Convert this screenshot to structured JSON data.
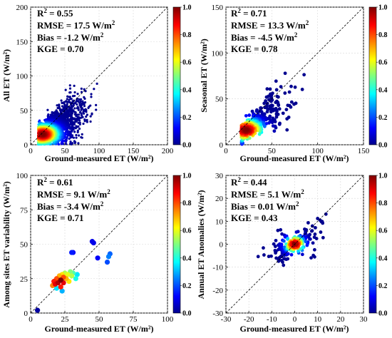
{
  "figure": {
    "colormap": [
      "#00008f",
      "#0000ff",
      "#007fff",
      "#00ffff",
      "#7fff7f",
      "#ffff00",
      "#ff7f00",
      "#ff0000",
      "#7f0000"
    ]
  },
  "chart_data": [
    {
      "type": "scatter",
      "id": "all",
      "xlabel": "Ground-measured ET (W/m²)",
      "ylabel": "All ET (W/m²)",
      "xlim": [
        0,
        200
      ],
      "ylim": [
        0,
        200
      ],
      "xticks": [
        0,
        50,
        100,
        150,
        200
      ],
      "yticks": [
        0,
        50,
        100,
        150,
        200
      ],
      "grid": true,
      "one_to_one_line": true,
      "stats": {
        "r2_label": "R",
        "r2_sup": "2",
        "r2_value": " = 0.55",
        "rmse": "RMSE = 17.5 W/m",
        "rmse_sup": "2",
        "bias": "Bias = -1.2 W/m",
        "bias_sup": "2",
        "kge": "KGE = 0.70"
      },
      "colorbar": {
        "range": [
          0,
          1
        ],
        "ticks": [
          "0.0",
          "0.2",
          "0.4",
          "0.6",
          "0.8",
          "1.0"
        ]
      },
      "density_cloud": {
        "center": [
          18,
          15
        ],
        "spread_x": 28,
        "spread_y": 18,
        "slope": 0.55,
        "x_max": 140,
        "n": 2600
      }
    },
    {
      "type": "scatter",
      "id": "seasonal",
      "xlabel": "Ground-measured ET (W/m²)",
      "ylabel": "Seasonal ET (W/m²)",
      "xlim": [
        0,
        150
      ],
      "ylim": [
        0,
        150
      ],
      "xticks": [
        0,
        50,
        100,
        150
      ],
      "yticks": [
        0,
        50,
        100,
        150
      ],
      "grid": true,
      "one_to_one_line": true,
      "stats": {
        "r2_label": "R",
        "r2_sup": "2",
        "r2_value": " = 0.71",
        "rmse": "RMSE = 13.3 W/m",
        "rmse_sup": "2",
        "bias": "Bias = -4.5 W/m",
        "bias_sup": "2",
        "kge": "KGE = 0.78"
      },
      "colorbar": {
        "range": [
          0,
          1
        ],
        "ticks": [
          "0.0",
          "0.2",
          "0.4",
          "0.6",
          "0.8",
          "1.0"
        ]
      },
      "density_cloud": {
        "center": [
          22,
          16
        ],
        "spread_x": 22,
        "spread_y": 14,
        "slope": 0.75,
        "x_max": 105,
        "n": 380
      }
    },
    {
      "type": "scatter",
      "id": "among_sites",
      "xlabel": "Ground-measured ET (W/m²)",
      "ylabel": "Among sites ET variability (W/m²)",
      "xlim": [
        0,
        100
      ],
      "ylim": [
        0,
        100
      ],
      "xticks": [
        0,
        25,
        50,
        75,
        100
      ],
      "yticks": [
        0,
        25,
        50,
        75,
        100
      ],
      "grid": true,
      "one_to_one_line": true,
      "stats": {
        "r2_label": "R",
        "r2_sup": "2",
        "r2_value": " = 0.61",
        "rmse": "RMSE = 9.1 W/m",
        "rmse_sup": "2",
        "bias": "Bias = -3.4 W/m",
        "bias_sup": "2",
        "kge": "KGE = 0.71"
      },
      "colorbar": {
        "range": [
          0,
          1
        ],
        "ticks": [
          "0.0",
          "0.2",
          "0.4",
          "0.6",
          "0.8",
          "1.0"
        ]
      },
      "points": [
        {
          "x": 5,
          "y": 2,
          "d": 0.02
        },
        {
          "x": 16,
          "y": 20,
          "d": 0.75
        },
        {
          "x": 17,
          "y": 23,
          "d": 0.85
        },
        {
          "x": 18,
          "y": 21,
          "d": 0.9
        },
        {
          "x": 19,
          "y": 25,
          "d": 0.8
        },
        {
          "x": 20,
          "y": 22,
          "d": 0.95
        },
        {
          "x": 21,
          "y": 27,
          "d": 0.7
        },
        {
          "x": 22,
          "y": 24,
          "d": 1.0
        },
        {
          "x": 22,
          "y": 19,
          "d": 0.85
        },
        {
          "x": 23,
          "y": 28,
          "d": 0.65
        },
        {
          "x": 24,
          "y": 26,
          "d": 0.8
        },
        {
          "x": 24,
          "y": 22,
          "d": 0.9
        },
        {
          "x": 25,
          "y": 29,
          "d": 0.55
        },
        {
          "x": 26,
          "y": 25,
          "d": 0.7
        },
        {
          "x": 27,
          "y": 28,
          "d": 0.6
        },
        {
          "x": 28,
          "y": 23,
          "d": 0.65
        },
        {
          "x": 29,
          "y": 30,
          "d": 0.5
        },
        {
          "x": 30,
          "y": 27,
          "d": 0.55
        },
        {
          "x": 31,
          "y": 29,
          "d": 0.45
        },
        {
          "x": 33,
          "y": 25,
          "d": 0.4
        },
        {
          "x": 34,
          "y": 28,
          "d": 0.35
        },
        {
          "x": 23,
          "y": 16,
          "d": 0.3
        },
        {
          "x": 19,
          "y": 18,
          "d": 0.35
        },
        {
          "x": 30,
          "y": 44,
          "d": 0.15
        },
        {
          "x": 31,
          "y": 44,
          "d": 0.12
        },
        {
          "x": 45,
          "y": 52,
          "d": 0.1
        },
        {
          "x": 46,
          "y": 51,
          "d": 0.1
        },
        {
          "x": 49,
          "y": 40,
          "d": 0.12
        },
        {
          "x": 56,
          "y": 37,
          "d": 0.2
        },
        {
          "x": 57,
          "y": 41,
          "d": 0.25
        },
        {
          "x": 58,
          "y": 43,
          "d": 0.22
        }
      ]
    },
    {
      "type": "scatter",
      "id": "annual_anomalies",
      "xlabel": "Ground-measured ET (W/m²)",
      "ylabel": "Annual ET Anomalies (W/m²)",
      "xlim": [
        -30,
        30
      ],
      "ylim": [
        -30,
        30
      ],
      "xticks": [
        -30,
        -20,
        -10,
        0,
        10,
        20,
        30
      ],
      "yticks": [
        -30,
        -20,
        -10,
        0,
        10,
        20,
        30
      ],
      "grid": true,
      "one_to_one_line": true,
      "stats": {
        "r2_label": "R",
        "r2_sup": "2",
        "r2_value": " = 0.44",
        "rmse": "RMSE = 5.1 W/m",
        "rmse_sup": "2",
        "bias": "Bias = 0.01 W/m",
        "bias_sup": "2",
        "kge": "KGE = 0.43"
      },
      "colorbar": {
        "range": [
          0,
          1
        ],
        "ticks": [
          "0.0",
          "0.2",
          "0.4",
          "0.6",
          "0.8",
          "1.0"
        ]
      },
      "density_cloud": {
        "center": [
          0,
          0
        ],
        "spread_x": 5,
        "spread_y": 4,
        "slope": 0.45,
        "x_max": 20,
        "n": 230
      }
    }
  ]
}
